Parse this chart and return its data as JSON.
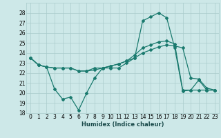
{
  "xlabel": "Humidex (Indice chaleur)",
  "bg_color": "#cde8e8",
  "grid_color": "#aacccc",
  "line_color": "#1a7a6e",
  "xlim": [
    -0.5,
    23.5
  ],
  "ylim": [
    18,
    29
  ],
  "yticks": [
    18,
    19,
    20,
    21,
    22,
    23,
    24,
    25,
    26,
    27,
    28
  ],
  "xticks": [
    0,
    1,
    2,
    3,
    4,
    5,
    6,
    7,
    8,
    9,
    10,
    11,
    12,
    13,
    14,
    15,
    16,
    17,
    18,
    19,
    20,
    21,
    22,
    23
  ],
  "line1_x": [
    0,
    1,
    2,
    3,
    4,
    5,
    6,
    7,
    8,
    9,
    10,
    11,
    12,
    13,
    14,
    15,
    16,
    17,
    18,
    19,
    20,
    21,
    22,
    23
  ],
  "line1_y": [
    23.5,
    22.8,
    22.6,
    20.4,
    19.4,
    19.6,
    18.3,
    20.0,
    21.5,
    22.5,
    22.5,
    22.5,
    23.0,
    23.5,
    27.2,
    27.6,
    28.0,
    27.5,
    24.5,
    20.2,
    20.3,
    21.3,
    20.3,
    20.3
  ],
  "line2_x": [
    0,
    1,
    2,
    3,
    4,
    5,
    6,
    7,
    8,
    9,
    10,
    11,
    12,
    13,
    14,
    15,
    16,
    17,
    18,
    19,
    20,
    21,
    22,
    23
  ],
  "line2_y": [
    23.5,
    22.8,
    22.6,
    22.5,
    22.5,
    22.5,
    22.2,
    22.2,
    22.3,
    22.5,
    22.7,
    22.9,
    23.2,
    23.5,
    24.0,
    24.3,
    24.6,
    24.8,
    24.7,
    24.5,
    21.5,
    21.4,
    20.5,
    20.3
  ],
  "line3_x": [
    0,
    1,
    2,
    3,
    4,
    5,
    6,
    7,
    8,
    9,
    10,
    11,
    12,
    13,
    14,
    15,
    16,
    17,
    18,
    19,
    20,
    21,
    22,
    23
  ],
  "line3_y": [
    23.5,
    22.8,
    22.6,
    22.5,
    22.5,
    22.5,
    22.2,
    22.2,
    22.5,
    22.5,
    22.7,
    22.9,
    23.2,
    23.8,
    24.5,
    24.8,
    25.1,
    25.2,
    24.9,
    20.3,
    20.3,
    20.3,
    20.3,
    20.3
  ]
}
